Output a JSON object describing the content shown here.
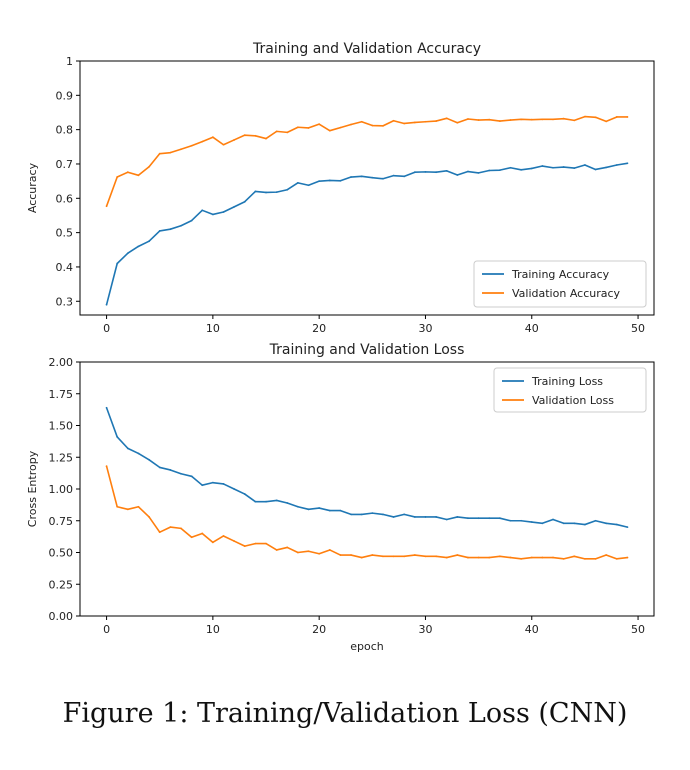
{
  "caption": "Figure 1: Training/Validation Loss (CNN)",
  "chart_data": [
    {
      "type": "line",
      "title": "Training and Validation Accuracy",
      "xlabel": "",
      "ylabel": "Accuracy",
      "xlim": [
        -2.5,
        51.5
      ],
      "ylim": [
        0.26,
        1.0
      ],
      "xticks": [
        0,
        10,
        20,
        30,
        40,
        50
      ],
      "yticks": [
        0.3,
        0.4,
        0.5,
        0.6,
        0.7,
        0.8,
        0.9,
        1.0
      ],
      "grid": false,
      "legend_position": "lower-right",
      "x": [
        0,
        1,
        2,
        3,
        4,
        5,
        6,
        7,
        8,
        9,
        10,
        11,
        12,
        13,
        14,
        15,
        16,
        17,
        18,
        19,
        20,
        21,
        22,
        23,
        24,
        25,
        26,
        27,
        28,
        29,
        30,
        31,
        32,
        33,
        34,
        35,
        36,
        37,
        38,
        39,
        40,
        41,
        42,
        43,
        44,
        45,
        46,
        47,
        48,
        49
      ],
      "series": [
        {
          "name": "Training Accuracy",
          "color": "#1f77b4",
          "values": [
            0.29,
            0.41,
            0.44,
            0.46,
            0.475,
            0.505,
            0.51,
            0.52,
            0.535,
            0.565,
            0.553,
            0.56,
            0.575,
            0.59,
            0.62,
            0.617,
            0.618,
            0.625,
            0.645,
            0.638,
            0.65,
            0.652,
            0.651,
            0.662,
            0.664,
            0.66,
            0.657,
            0.666,
            0.664,
            0.676,
            0.677,
            0.676,
            0.68,
            0.668,
            0.678,
            0.674,
            0.681,
            0.682,
            0.689,
            0.683,
            0.687,
            0.694,
            0.689,
            0.691,
            0.688,
            0.697,
            0.684,
            0.69,
            0.697,
            0.702
          ]
        },
        {
          "name": "Validation Accuracy",
          "color": "#ff7f0e",
          "values": [
            0.577,
            0.662,
            0.676,
            0.667,
            0.692,
            0.73,
            0.733,
            0.743,
            0.753,
            0.765,
            0.778,
            0.756,
            0.77,
            0.784,
            0.782,
            0.774,
            0.795,
            0.792,
            0.807,
            0.805,
            0.816,
            0.797,
            0.806,
            0.815,
            0.823,
            0.812,
            0.811,
            0.826,
            0.818,
            0.821,
            0.823,
            0.825,
            0.833,
            0.82,
            0.831,
            0.828,
            0.829,
            0.825,
            0.828,
            0.83,
            0.829,
            0.83,
            0.83,
            0.832,
            0.827,
            0.838,
            0.836,
            0.824,
            0.837,
            0.837
          ]
        }
      ]
    },
    {
      "type": "line",
      "title": "Training and Validation Loss",
      "xlabel": "epoch",
      "ylabel": "Cross Entropy",
      "xlim": [
        -2.5,
        51.5
      ],
      "ylim": [
        0.0,
        2.0
      ],
      "xticks": [
        0,
        10,
        20,
        30,
        40,
        50
      ],
      "yticks": [
        "0.00",
        "0.25",
        "0.50",
        "0.75",
        "1.00",
        "1.25",
        "1.50",
        "1.75",
        "2.00"
      ],
      "grid": false,
      "legend_position": "upper-right",
      "x": [
        0,
        1,
        2,
        3,
        4,
        5,
        6,
        7,
        8,
        9,
        10,
        11,
        12,
        13,
        14,
        15,
        16,
        17,
        18,
        19,
        20,
        21,
        22,
        23,
        24,
        25,
        26,
        27,
        28,
        29,
        30,
        31,
        32,
        33,
        34,
        35,
        36,
        37,
        38,
        39,
        40,
        41,
        42,
        43,
        44,
        45,
        46,
        47,
        48,
        49
      ],
      "series": [
        {
          "name": "Training Loss",
          "color": "#1f77b4",
          "values": [
            1.64,
            1.41,
            1.32,
            1.28,
            1.23,
            1.17,
            1.15,
            1.12,
            1.1,
            1.03,
            1.05,
            1.04,
            1.0,
            0.96,
            0.9,
            0.9,
            0.91,
            0.89,
            0.86,
            0.84,
            0.85,
            0.83,
            0.83,
            0.8,
            0.8,
            0.81,
            0.8,
            0.78,
            0.8,
            0.78,
            0.78,
            0.78,
            0.76,
            0.78,
            0.77,
            0.77,
            0.77,
            0.77,
            0.75,
            0.75,
            0.74,
            0.73,
            0.76,
            0.73,
            0.73,
            0.72,
            0.75,
            0.73,
            0.72,
            0.7
          ]
        },
        {
          "name": "Validation Loss",
          "color": "#ff7f0e",
          "values": [
            1.18,
            0.86,
            0.84,
            0.86,
            0.78,
            0.66,
            0.7,
            0.69,
            0.62,
            0.65,
            0.58,
            0.63,
            0.59,
            0.55,
            0.57,
            0.57,
            0.52,
            0.54,
            0.5,
            0.51,
            0.49,
            0.52,
            0.48,
            0.48,
            0.46,
            0.48,
            0.47,
            0.47,
            0.47,
            0.48,
            0.47,
            0.47,
            0.46,
            0.48,
            0.46,
            0.46,
            0.46,
            0.47,
            0.46,
            0.45,
            0.46,
            0.46,
            0.46,
            0.45,
            0.47,
            0.45,
            0.45,
            0.48,
            0.45,
            0.46
          ]
        }
      ]
    }
  ]
}
